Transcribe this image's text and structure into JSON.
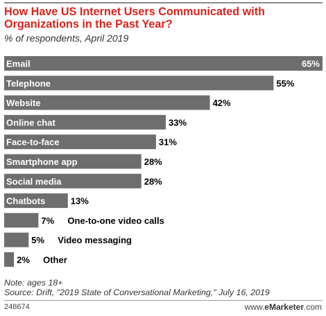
{
  "chart_data": {
    "type": "bar",
    "orientation": "horizontal",
    "title": "How Have US Internet Users Communicated with Organizations in the Past Year?",
    "subtitle": "% of respondents, April 2019",
    "categories": [
      "Email",
      "Telephone",
      "Website",
      "Online chat",
      "Face-to-face",
      "Smartphone app",
      "Social media",
      "Chatbots",
      "One-to-one video calls",
      "Video messaging",
      "Other"
    ],
    "values": [
      65,
      55,
      42,
      33,
      31,
      28,
      28,
      13,
      7,
      5,
      2
    ],
    "value_labels": [
      "65%",
      "55%",
      "42%",
      "33%",
      "31%",
      "28%",
      "28%",
      "13%",
      "7%",
      "5%",
      "2%"
    ],
    "xlim": [
      0,
      65
    ],
    "grid": false,
    "bar_color": "#6e6e6e"
  },
  "note": "Note: ages 18+",
  "source": "Source: Drift, \"2019 State of Conversational Marketing,\" July 16, 2019",
  "chart_id": "248674",
  "logo": {
    "prefix": "www.",
    "brand": "eMarketer",
    "suffix": ".com"
  }
}
